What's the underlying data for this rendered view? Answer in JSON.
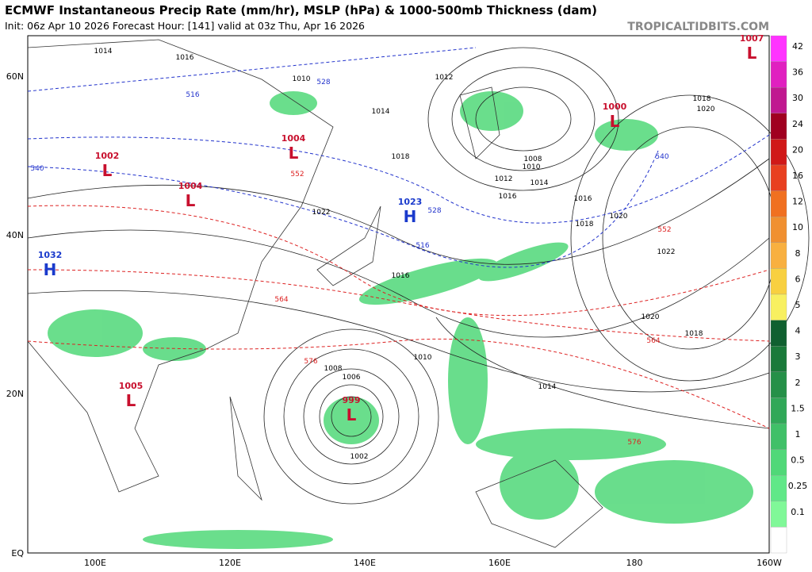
{
  "header": {
    "title": "ECMWF Instantaneous Precip Rate (mm/hr), MSLP (hPa) & 1000-500mb Thickness (dam)",
    "subtitle": "Init: 06z Apr 10 2026   Forecast Hour: [141]   valid at 03z Thu, Apr 16 2026",
    "credit": "TROPICALTIDBITS.COM"
  },
  "map": {
    "lat_labels": [
      "60N",
      "40N",
      "20N",
      "EQ"
    ],
    "lon_labels": [
      "100E",
      "120E",
      "140E",
      "160E",
      "180",
      "160W"
    ],
    "centers": [
      {
        "symbol": "L",
        "pressure": "1007"
      },
      {
        "symbol": "L",
        "pressure": "1000"
      },
      {
        "symbol": "L",
        "pressure": "1004"
      },
      {
        "symbol": "L",
        "pressure": "1002"
      },
      {
        "symbol": "L",
        "pressure": "1004"
      },
      {
        "symbol": "H",
        "pressure": "1023"
      },
      {
        "symbol": "H",
        "pressure": "1032"
      },
      {
        "symbol": "L",
        "pressure": "1005"
      },
      {
        "symbol": "L",
        "pressure": "999"
      }
    ],
    "isobar_labels": [
      "1014",
      "1016",
      "1010",
      "1012",
      "1014",
      "1018",
      "1016",
      "1020",
      "1022",
      "1016",
      "1018",
      "1020",
      "1014",
      "1008",
      "1006",
      "1002",
      "1008",
      "1010",
      "1014",
      "1016",
      "1012",
      "1010",
      "1018",
      "1022",
      "1020",
      "1018"
    ],
    "thickness_labels": [
      "516",
      "528",
      "540",
      "552",
      "564",
      "576",
      "552",
      "564",
      "576",
      "540",
      "528",
      "516"
    ]
  },
  "colorbar": {
    "labels": [
      "42",
      "36",
      "30",
      "24",
      "20",
      "16",
      "12",
      "10",
      "8",
      "6",
      "5",
      "4",
      "3",
      "2",
      "1.5",
      "1",
      "0.5",
      "0.25",
      "0.1"
    ],
    "colors": [
      "#ff33ff",
      "#e020c0",
      "#c01890",
      "#a00020",
      "#d01818",
      "#e84020",
      "#f07020",
      "#f09030",
      "#f8b040",
      "#f8d040",
      "#f8f060",
      "#106030",
      "#1a7a3a",
      "#259048",
      "#30a858",
      "#40c068",
      "#50d878",
      "#60e888",
      "#80f898",
      "#ffffff"
    ]
  }
}
